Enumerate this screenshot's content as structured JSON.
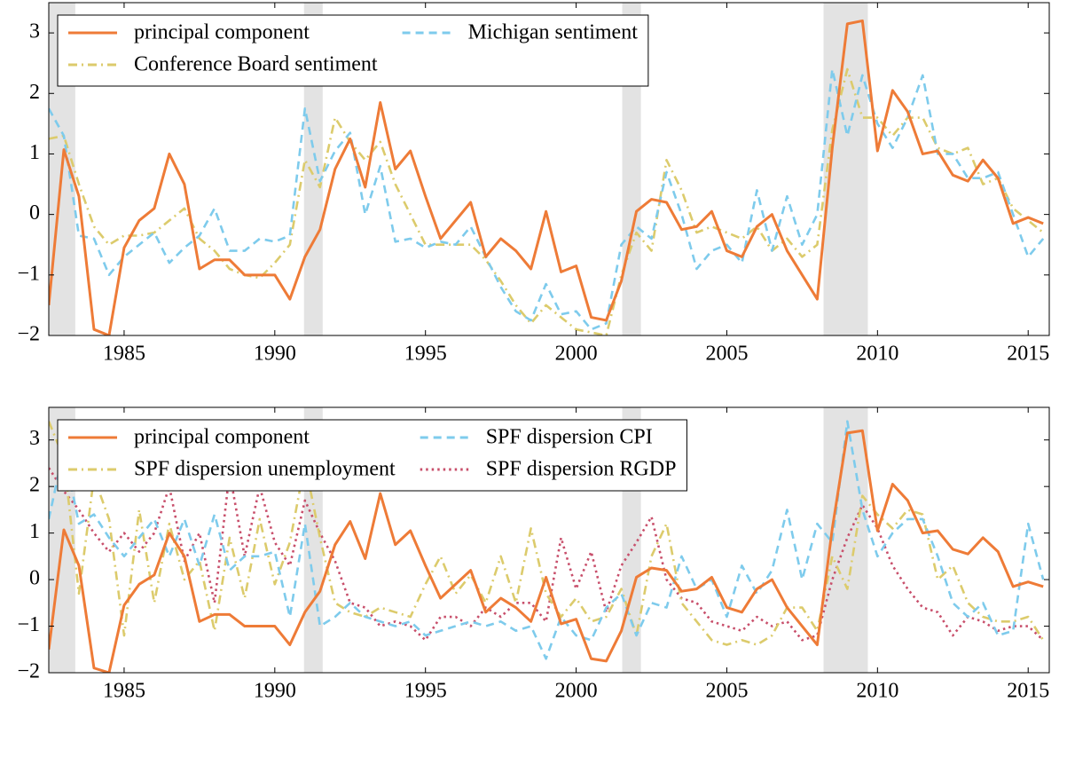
{
  "chart_data": [
    {
      "type": "line",
      "x": [
        1982.5,
        1983,
        1983.5,
        1984,
        1984.5,
        1985,
        1985.5,
        1986,
        1986.5,
        1987,
        1987.5,
        1988,
        1988.5,
        1989,
        1989.5,
        1990,
        1990.5,
        1991,
        1991.5,
        1992,
        1992.5,
        1993,
        1993.5,
        1994,
        1994.5,
        1995,
        1995.5,
        1996,
        1996.5,
        1997,
        1997.5,
        1998,
        1998.5,
        1999,
        1999.5,
        2000,
        2000.5,
        2001,
        2001.5,
        2002,
        2002.5,
        2003,
        2003.5,
        2004,
        2004.5,
        2005,
        2005.5,
        2006,
        2006.5,
        2007,
        2007.5,
        2008,
        2008.5,
        2009,
        2009.5,
        2010,
        2010.5,
        2011,
        2011.5,
        2012,
        2012.5,
        2013,
        2013.5,
        2014,
        2014.5,
        2015,
        2015.5
      ],
      "series": [
        {
          "name": "principal component",
          "color": "#ee7b37",
          "dash": "solid",
          "values": [
            -1.5,
            1.07,
            0.3,
            -1.9,
            -2.0,
            -0.55,
            -0.1,
            0.1,
            1.0,
            0.5,
            -0.9,
            -0.75,
            -0.75,
            -1.0,
            -1.0,
            -1.0,
            -1.4,
            -0.7,
            -0.25,
            0.75,
            1.25,
            0.45,
            1.85,
            0.75,
            1.05,
            0.3,
            -0.4,
            -0.1,
            0.2,
            -0.7,
            -0.4,
            -0.6,
            -0.9,
            0.05,
            -0.95,
            -0.85,
            -1.7,
            -1.75,
            -1.1,
            0.05,
            0.25,
            0.2,
            -0.25,
            -0.2,
            0.05,
            -0.6,
            -0.7,
            -0.2,
            0.0,
            -0.6,
            -1.0,
            -1.4,
            1.1,
            3.15,
            3.2,
            1.05,
            2.05,
            1.7,
            1.0,
            1.05,
            0.65,
            0.55,
            0.9,
            0.6,
            -0.15,
            -0.05,
            -0.15
          ]
        },
        {
          "name": "Michigan sentiment",
          "color": "#7ecbec",
          "dash": "dashed",
          "values": [
            1.75,
            1.3,
            -0.35,
            -0.4,
            -1.0,
            -0.7,
            -0.5,
            -0.3,
            -0.8,
            -0.55,
            -0.35,
            0.1,
            -0.6,
            -0.6,
            -0.4,
            -0.45,
            -0.35,
            1.75,
            0.55,
            1.05,
            1.35,
            0.0,
            0.8,
            -0.45,
            -0.4,
            -0.55,
            -0.45,
            -0.5,
            -0.2,
            -0.7,
            -1.2,
            -1.6,
            -1.75,
            -1.15,
            -1.65,
            -1.6,
            -1.9,
            -1.8,
            -0.5,
            -0.2,
            -0.4,
            0.7,
            0.0,
            -0.9,
            -0.6,
            -0.5,
            -0.8,
            0.4,
            -0.6,
            0.3,
            -0.5,
            0.0,
            2.4,
            1.3,
            2.3,
            1.5,
            1.1,
            1.6,
            2.3,
            1.0,
            1.0,
            0.6,
            0.6,
            0.7,
            0.0,
            -0.7,
            -0.4
          ]
        },
        {
          "name": "Conference Board sentiment",
          "color": "#dccb6c",
          "dash": "dashdot",
          "values": [
            1.25,
            1.3,
            0.5,
            -0.2,
            -0.5,
            -0.35,
            -0.35,
            -0.3,
            -0.1,
            0.1,
            -0.4,
            -0.6,
            -0.9,
            -1.0,
            -1.05,
            -0.8,
            -0.5,
            0.9,
            0.45,
            1.6,
            1.2,
            0.9,
            1.2,
            0.5,
            0.0,
            -0.5,
            -0.5,
            -0.5,
            -0.5,
            -0.75,
            -1.1,
            -1.5,
            -1.8,
            -1.5,
            -1.7,
            -1.9,
            -1.95,
            -2.0,
            -1.0,
            -0.3,
            -0.6,
            0.9,
            0.4,
            -0.3,
            -0.2,
            -0.3,
            -0.4,
            -0.2,
            -0.6,
            -0.4,
            -0.7,
            -0.5,
            1.4,
            2.4,
            1.6,
            1.6,
            1.3,
            1.6,
            1.6,
            1.1,
            1.0,
            1.1,
            0.5,
            0.6,
            0.1,
            -0.1,
            -0.3
          ]
        }
      ],
      "recessions": [
        [
          1982.5,
          1983.38
        ],
        [
          1990.97,
          1991.59
        ],
        [
          2001.53,
          2002.15
        ],
        [
          2008.21,
          2009.68
        ]
      ],
      "xlim": [
        1982.5,
        2015.7
      ],
      "ylim": [
        -2,
        3.5
      ],
      "xticks": [
        1985,
        1990,
        1995,
        2000,
        2005,
        2010,
        2015
      ],
      "yticks": [
        {
          "value": -2,
          "label": "−2"
        },
        {
          "value": -1,
          "label": "−1"
        },
        0,
        1,
        2,
        3
      ],
      "legend": "upper left"
    },
    {
      "type": "line",
      "x": [
        1982.5,
        1983,
        1983.5,
        1984,
        1984.5,
        1985,
        1985.5,
        1986,
        1986.5,
        1987,
        1987.5,
        1988,
        1988.5,
        1989,
        1989.5,
        1990,
        1990.5,
        1991,
        1991.5,
        1992,
        1992.5,
        1993,
        1993.5,
        1994,
        1994.5,
        1995,
        1995.5,
        1996,
        1996.5,
        1997,
        1997.5,
        1998,
        1998.5,
        1999,
        1999.5,
        2000,
        2000.5,
        2001,
        2001.5,
        2002,
        2002.5,
        2003,
        2003.5,
        2004,
        2004.5,
        2005,
        2005.5,
        2006,
        2006.5,
        2007,
        2007.5,
        2008,
        2008.5,
        2009,
        2009.5,
        2010,
        2010.5,
        2011,
        2011.5,
        2012,
        2012.5,
        2013,
        2013.5,
        2014,
        2014.5,
        2015,
        2015.5
      ],
      "series": [
        {
          "name": "principal component",
          "color": "#ee7b37",
          "dash": "solid",
          "values": [
            -1.5,
            1.07,
            0.3,
            -1.9,
            -2.0,
            -0.55,
            -0.1,
            0.1,
            1.0,
            0.5,
            -0.9,
            -0.75,
            -0.75,
            -1.0,
            -1.0,
            -1.0,
            -1.4,
            -0.7,
            -0.25,
            0.75,
            1.25,
            0.45,
            1.85,
            0.75,
            1.05,
            0.3,
            -0.4,
            -0.1,
            0.2,
            -0.7,
            -0.4,
            -0.6,
            -0.9,
            0.05,
            -0.95,
            -0.85,
            -1.7,
            -1.75,
            -1.1,
            0.05,
            0.25,
            0.2,
            -0.25,
            -0.2,
            0.05,
            -0.6,
            -0.7,
            -0.2,
            0.0,
            -0.6,
            -1.0,
            -1.4,
            1.1,
            3.15,
            3.2,
            1.05,
            2.05,
            1.7,
            1.0,
            1.05,
            0.65,
            0.55,
            0.9,
            0.6,
            -0.15,
            -0.05,
            -0.15
          ]
        },
        {
          "name": "SPF dispersion CPI",
          "color": "#7ecbec",
          "dash": "dashed",
          "values": [
            1.3,
            2.8,
            1.2,
            1.4,
            0.9,
            0.5,
            0.9,
            1.3,
            0.5,
            1.3,
            0.3,
            1.4,
            0.2,
            0.5,
            0.5,
            0.6,
            -0.8,
            1.2,
            -1.0,
            -0.8,
            -0.5,
            -0.8,
            -0.9,
            -1.0,
            -0.9,
            -1.2,
            -1.1,
            -1.0,
            -0.9,
            -1.0,
            -0.9,
            -1.1,
            -1.0,
            -1.7,
            -0.8,
            -1.2,
            -1.3,
            -0.6,
            -0.3,
            -1.2,
            -0.5,
            -0.6,
            0.5,
            -0.2,
            0.0,
            -0.8,
            0.3,
            -0.3,
            0.2,
            1.5,
            0.0,
            1.2,
            0.8,
            3.4,
            1.5,
            0.5,
            1.0,
            1.3,
            1.3,
            0.5,
            -0.5,
            -0.8,
            -0.5,
            -1.2,
            -1.1,
            1.2,
            0.0
          ]
        },
        {
          "name": "SPF dispersion unemployment",
          "color": "#dccb6c",
          "dash": "dashdot",
          "values": [
            3.4,
            2.6,
            -0.3,
            2.2,
            1.3,
            -1.2,
            1.5,
            -0.5,
            1.2,
            0.0,
            0.4,
            -1.1,
            0.9,
            -0.4,
            1.3,
            -0.1,
            0.8,
            2.5,
            0.9,
            -0.5,
            -0.7,
            -0.8,
            -0.6,
            -0.7,
            -0.8,
            -0.1,
            0.5,
            -0.3,
            0.1,
            -0.5,
            0.5,
            -0.5,
            1.1,
            -0.3,
            -0.8,
            -0.4,
            -0.9,
            -0.8,
            -0.2,
            -1.2,
            0.5,
            1.2,
            -0.5,
            -0.9,
            -1.3,
            -1.4,
            -1.3,
            -1.4,
            -1.2,
            -0.6,
            -0.6,
            -1.1,
            0.5,
            -0.2,
            1.8,
            1.4,
            1.1,
            1.5,
            1.4,
            0.0,
            0.3,
            -0.5,
            -0.8,
            -0.9,
            -0.9,
            -0.8,
            -1.3
          ]
        },
        {
          "name": "SPF dispersion RGDP",
          "color": "#c84f6b",
          "dash": "dotted",
          "values": [
            2.4,
            1.9,
            1.5,
            1.0,
            0.6,
            1.0,
            0.6,
            1.0,
            2.0,
            0.4,
            1.0,
            -0.5,
            2.3,
            0.5,
            2.0,
            0.8,
            0.3,
            1.7,
            1.0,
            0.4,
            -0.5,
            -0.6,
            -1.0,
            -0.9,
            -1.0,
            -1.3,
            -0.8,
            -0.8,
            -1.0,
            -0.6,
            -0.8,
            -0.5,
            -0.5,
            -0.9,
            0.9,
            -0.2,
            0.6,
            -0.7,
            0.3,
            0.8,
            1.35,
            0.0,
            -0.4,
            -0.5,
            -0.9,
            -1.0,
            -1.1,
            -0.8,
            -1.0,
            -0.9,
            -1.3,
            -1.2,
            0.0,
            0.9,
            1.6,
            1.1,
            0.3,
            -0.2,
            -0.6,
            -0.7,
            -1.2,
            -0.8,
            -0.9,
            -1.1,
            -1.0,
            -1.0,
            -1.3
          ]
        }
      ],
      "recessions": [
        [
          1982.5,
          1983.38
        ],
        [
          1990.97,
          1991.59
        ],
        [
          2001.53,
          2002.15
        ],
        [
          2008.21,
          2009.68
        ]
      ],
      "xlim": [
        1982.5,
        2015.7
      ],
      "ylim": [
        -2,
        3.7
      ],
      "xticks": [
        1985,
        1990,
        1995,
        2000,
        2005,
        2010,
        2015
      ],
      "yticks": [
        {
          "value": -2,
          "label": "−2"
        },
        {
          "value": -1,
          "label": "−1"
        },
        0,
        1,
        2,
        3
      ],
      "legend": "upper left"
    }
  ]
}
